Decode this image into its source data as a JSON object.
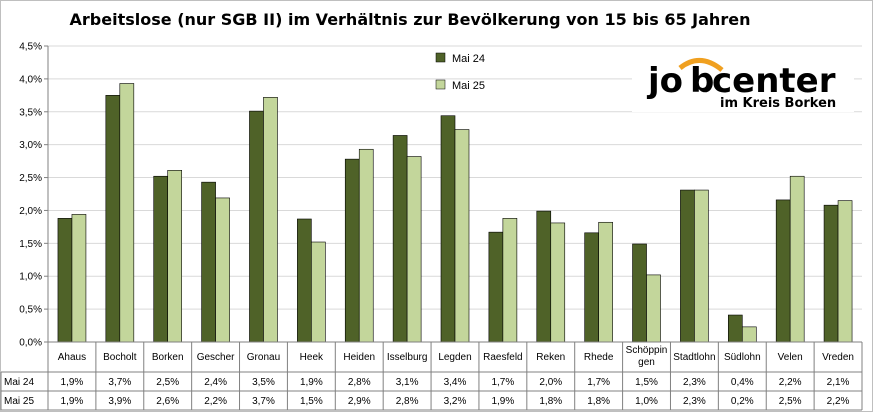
{
  "chart_data": {
    "type": "bar",
    "title": "Arbeitslose (nur SGB II) im Verhältnis zur Bevölkerung von 15 bis 65 Jahren",
    "categories": [
      "Ahaus",
      "Bocholt",
      "Borken",
      "Gescher",
      "Gronau",
      "Heek",
      "Heiden",
      "Isselburg",
      "Legden",
      "Raesfeld",
      "Reken",
      "Rhede",
      "Schöppin gen",
      "Stadtlohn",
      "Südlohn",
      "Velen",
      "Vreden"
    ],
    "series": [
      {
        "name": "Mai 24",
        "color": "#4f6228",
        "values": [
          1.88,
          3.75,
          2.52,
          2.43,
          3.51,
          1.87,
          2.78,
          3.14,
          3.44,
          1.67,
          1.99,
          1.66,
          1.49,
          2.31,
          0.41,
          2.16,
          2.08
        ],
        "labels": [
          "1,9%",
          "3,7%",
          "2,5%",
          "2,4%",
          "3,5%",
          "1,9%",
          "2,8%",
          "3,1%",
          "3,4%",
          "1,7%",
          "2,0%",
          "1,7%",
          "1,5%",
          "2,3%",
          "0,4%",
          "2,2%",
          "2,1%"
        ]
      },
      {
        "name": "Mai 25",
        "color": "#c3d69b",
        "values": [
          1.94,
          3.93,
          2.61,
          2.19,
          3.72,
          1.52,
          2.93,
          2.82,
          3.23,
          1.88,
          1.81,
          1.82,
          1.02,
          2.31,
          0.23,
          2.52,
          2.15
        ],
        "labels": [
          "1,9%",
          "3,9%",
          "2,6%",
          "2,2%",
          "3,7%",
          "1,5%",
          "2,9%",
          "2,8%",
          "3,2%",
          "1,9%",
          "1,8%",
          "1,8%",
          "1,0%",
          "2,3%",
          "0,2%",
          "2,5%",
          "2,2%"
        ]
      }
    ],
    "ylim": [
      0,
      4.5
    ],
    "yticks": [
      "0,0%",
      "0,5%",
      "1,0%",
      "1,5%",
      "2,0%",
      "2,5%",
      "3,0%",
      "3,5%",
      "4,0%",
      "4,5%"
    ],
    "grid": true,
    "legend_position": "top-center",
    "data_table": true
  },
  "logo": {
    "part1": "jo",
    "part2": "b",
    "part3": "center",
    "subtitle": "im Kreis Borken",
    "accent_color": "#f0a020"
  }
}
